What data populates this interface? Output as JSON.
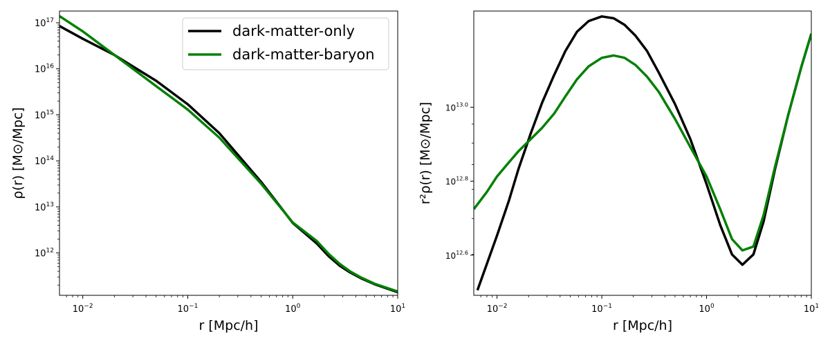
{
  "chart_data": [
    {
      "type": "line",
      "xscale": "log",
      "yscale": "log",
      "xlim": [
        0.006,
        10
      ],
      "ylim": [
        120000000000.0,
        1.8e+17
      ],
      "xlabel": "r [Mpc/h]",
      "ylabel": "ρ(r) [M⊙/Mpc]",
      "xtick_values": [
        0.01,
        0.1,
        1,
        10
      ],
      "xtick_exps": [
        "−2",
        "−1",
        "0",
        "1"
      ],
      "ytick_values": [
        1000000000000.0,
        10000000000000.0,
        100000000000000.0,
        1000000000000000.0,
        1e+16,
        1e+17
      ],
      "ytick_exps": [
        "12",
        "13",
        "14",
        "15",
        "16",
        "17"
      ],
      "grid": false,
      "legend_position": "top-right",
      "series": [
        {
          "name": "dark-matter-only",
          "color": "#000000",
          "x": [
            0.006,
            0.01,
            0.02,
            0.05,
            0.1,
            0.2,
            0.5,
            1,
            1.7,
            2.2,
            2.8,
            3.5,
            4.5,
            6,
            10
          ],
          "y": [
            8.5e+16,
            4.5e+16,
            2e+16,
            5500000000000000.0,
            1700000000000000.0,
            400000000000000.0,
            35000000000000.0,
            4500000000000.0,
            1600000000000.0,
            850000000000.0,
            530000000000.0,
            380000000000.0,
            280000000000.0,
            210000000000.0,
            140000000000.0
          ]
        },
        {
          "name": "dark-matter-baryon",
          "color": "#008000",
          "x": [
            0.006,
            0.01,
            0.02,
            0.05,
            0.1,
            0.2,
            0.5,
            1,
            1.7,
            2.2,
            2.8,
            3.5,
            4.5,
            6,
            10
          ],
          "y": [
            1.4e+17,
            6.5e+16,
            2e+16,
            4200000000000000.0,
            1300000000000000.0,
            320000000000000.0,
            32000000000000.0,
            4600000000000.0,
            1800000000000.0,
            950000000000.0,
            580000000000.0,
            400000000000.0,
            290000000000.0,
            215000000000.0,
            145000000000.0
          ]
        }
      ]
    },
    {
      "type": "line",
      "xscale": "log",
      "yscale": "log",
      "xlim": [
        0.006,
        10
      ],
      "ylim": [
        3100000000000.0,
        18200000000000.0
      ],
      "xlabel": "r [Mpc/h]",
      "ylabel": "r²ρ(r) [M⊙/Mpc]",
      "xtick_values": [
        0.01,
        0.1,
        1,
        10
      ],
      "xtick_exps": [
        "−2",
        "−1",
        "0",
        "1"
      ],
      "ytick_values": [
        3980000000000.0,
        6310000000000.0,
        10000000000000.0
      ],
      "ytick_exps": [
        "12.6",
        "12.8",
        "13.0"
      ],
      "grid": false,
      "series": [
        {
          "name": "dark-matter-only",
          "color": "#000000",
          "x": [
            0.0065,
            0.01,
            0.013,
            0.016,
            0.021,
            0.027,
            0.035,
            0.045,
            0.058,
            0.075,
            0.1,
            0.13,
            0.165,
            0.21,
            0.27,
            0.35,
            0.5,
            0.7,
            1.0,
            1.35,
            1.75,
            2.2,
            2.8,
            3.5,
            4.5,
            6.0,
            8.0,
            10
          ],
          "y": [
            3200000000000.0,
            4500000000000.0,
            5600000000000.0,
            6800000000000.0,
            8500000000000.0,
            10300000000000.0,
            12200000000000.0,
            14200000000000.0,
            16000000000000.0,
            17100000000000.0,
            17600000000000.0,
            17400000000000.0,
            16700000000000.0,
            15600000000000.0,
            14200000000000.0,
            12400000000000.0,
            10200000000000.0,
            8200000000000.0,
            6200000000000.0,
            4800000000000.0,
            4000000000000.0,
            3750000000000.0,
            4000000000000.0,
            4900000000000.0,
            6800000000000.0,
            9500000000000.0,
            12800000000000.0,
            15800000000000.0
          ]
        },
        {
          "name": "dark-matter-baryon",
          "color": "#008000",
          "x": [
            0.006,
            0.008,
            0.01,
            0.013,
            0.016,
            0.021,
            0.027,
            0.035,
            0.045,
            0.058,
            0.075,
            0.1,
            0.13,
            0.165,
            0.21,
            0.27,
            0.35,
            0.5,
            0.7,
            1.0,
            1.35,
            1.75,
            2.2,
            2.8,
            3.5,
            4.5,
            6.0,
            8.0,
            10
          ],
          "y": [
            5300000000000.0,
            5900000000000.0,
            6500000000000.0,
            7100000000000.0,
            7600000000000.0,
            8200000000000.0,
            8800000000000.0,
            9600000000000.0,
            10700000000000.0,
            11900000000000.0,
            12900000000000.0,
            13600000000000.0,
            13800000000000.0,
            13600000000000.0,
            13000000000000.0,
            12100000000000.0,
            11000000000000.0,
            9300000000000.0,
            7800000000000.0,
            6500000000000.0,
            5300000000000.0,
            4400000000000.0,
            4100000000000.0,
            4200000000000.0,
            5100000000000.0,
            6900000000000.0,
            9500000000000.0,
            12800000000000.0,
            15800000000000.0
          ]
        }
      ]
    }
  ]
}
